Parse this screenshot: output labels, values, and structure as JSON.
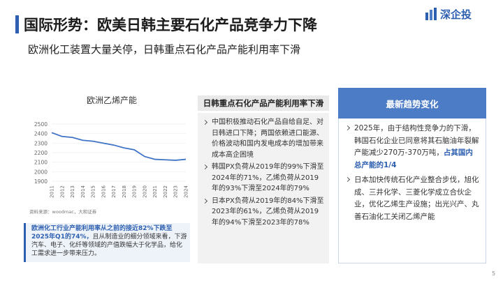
{
  "header": {
    "title": "国际形势：欧美日韩主要石化产品竞争力下降",
    "subtitle": "欧洲化工装置大量关停，日韩重点石化产品产能利用率下滑",
    "logo": "深企投"
  },
  "chart_data": {
    "type": "line",
    "title": "欧洲乙烯产能",
    "categories": [
      "2011",
      "2012",
      "2013",
      "2014",
      "2015",
      "2016",
      "2017",
      "2018",
      "2019",
      "2020",
      "2021",
      "2022",
      "2023",
      "2024"
    ],
    "series": [
      {
        "name": "欧洲乙烯产能",
        "color": "#3f73c6",
        "values": [
          2410,
          2370,
          2360,
          2330,
          2320,
          2300,
          2280,
          2250,
          2230,
          2160,
          2130,
          2125,
          2120,
          2130
        ]
      }
    ],
    "ylim": [
      1900,
      2500
    ],
    "yticks": [
      1900,
      2000,
      2100,
      2200,
      2300,
      2400,
      2500
    ],
    "grid": true,
    "source": "资料来源：woodmac，大和证券"
  },
  "europe_note": {
    "highlight": "欧洲化工行业产能利用率从之前的接近82%下跌至2025年Q1的74%，",
    "text": "且从制造业的细分领域来看，下游汽车、电子、化纤等领域的产值跌幅大于化学品，给化工需求进一步带来压力。"
  },
  "japan_korea": {
    "heading": "日韩重点石化产品产能利用率下滑",
    "bullets": [
      "中国积极推动石化产品自给自足、对日韩进口下降；两国依赖进口能源、价格波动和国内发电成本的增加带来成本高企困境",
      "韩国PX负荷从2019年的99%下滑至2024年的71%，乙烯负荷从2019年的93%下滑至2024年的79%",
      "日本PX负荷从2019年的84%下滑至2023年的61%，乙烯负荷从2019年的94%下滑至2023年的78%"
    ]
  },
  "trends": {
    "heading": "最新趋势变化",
    "bullet_1": {
      "text": "2025年，由于结构性竞争力的下滑，韩国石化企业已同意将其石脑油年裂解产能减少270万-370万吨，",
      "highlight": "占其国内总产能的1/4"
    },
    "bullet_2": "日本加快传统石化产业整合步伐，旭化成、三井化学、三菱化学成立合伙企业，优化乙烯生产设施；出光兴产、丸善石油化工关闭乙烯产能"
  },
  "page_number": "5"
}
